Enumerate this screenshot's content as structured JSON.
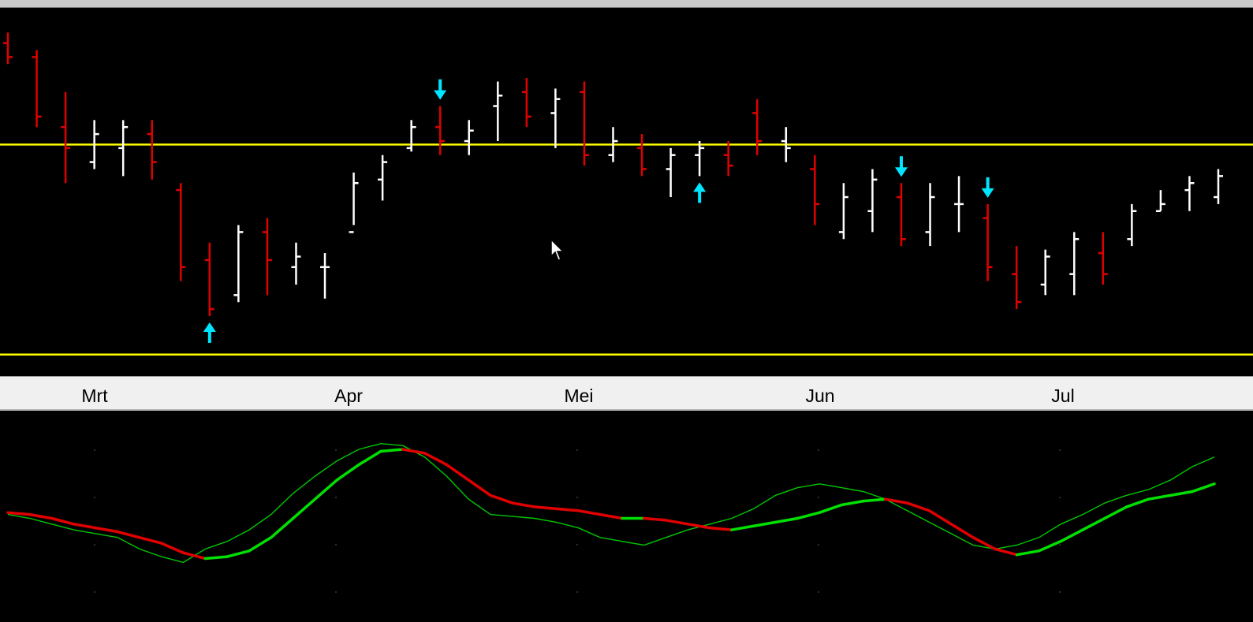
{
  "months": [
    "Mrt",
    "Apr",
    "Mei",
    "Jun",
    "Jul"
  ],
  "colors": {
    "up_bar": "#ffffff",
    "down_bar": "#e00000",
    "level_line": "#ffff00",
    "signal_arrow": "#00e5ff",
    "fast_line": "#00c800",
    "slow_up": "#00e000",
    "slow_down": "#e00000"
  },
  "chart_data": [
    {
      "type": "ohlc",
      "price_scale": [
        0,
        100
      ],
      "level_lines": [
        65,
        5
      ],
      "month_ticks": [
        {
          "label": "Mrt",
          "index": 4
        },
        {
          "label": "Apr",
          "index": 16
        },
        {
          "label": "Mei",
          "index": 27
        },
        {
          "label": "Jun",
          "index": 39
        },
        {
          "label": "Jul",
          "index": 51
        }
      ],
      "bars": [
        {
          "i": 0,
          "o": 94,
          "h": 97,
          "l": 88,
          "c": 90,
          "up": false
        },
        {
          "i": 1,
          "o": 90,
          "h": 92,
          "l": 70,
          "c": 73,
          "up": false
        },
        {
          "i": 2,
          "o": 70,
          "h": 80,
          "l": 54,
          "c": 64,
          "up": false
        },
        {
          "i": 3,
          "o": 60,
          "h": 72,
          "l": 58,
          "c": 68,
          "up": true
        },
        {
          "i": 4,
          "o": 64,
          "h": 72,
          "l": 56,
          "c": 70,
          "up": true
        },
        {
          "i": 5,
          "o": 68,
          "h": 72,
          "l": 55,
          "c": 60,
          "up": false
        },
        {
          "i": 6,
          "o": 52,
          "h": 54,
          "l": 26,
          "c": 30,
          "up": false
        },
        {
          "i": 7,
          "o": 32,
          "h": 37,
          "l": 16,
          "c": 18,
          "up": false
        },
        {
          "i": 8,
          "o": 22,
          "h": 42,
          "l": 20,
          "c": 40,
          "up": true
        },
        {
          "i": 9,
          "o": 40,
          "h": 44,
          "l": 22,
          "c": 32,
          "up": false
        },
        {
          "i": 10,
          "o": 30,
          "h": 37,
          "l": 25,
          "c": 33,
          "up": true
        },
        {
          "i": 11,
          "o": 30,
          "h": 34,
          "l": 21,
          "c": 30,
          "up": true
        },
        {
          "i": 12,
          "o": 40,
          "h": 57,
          "l": 42,
          "c": 54,
          "up": true
        },
        {
          "i": 13,
          "o": 55,
          "h": 62,
          "l": 49,
          "c": 60,
          "up": true
        },
        {
          "i": 14,
          "o": 64,
          "h": 72,
          "l": 63,
          "c": 70,
          "up": true
        },
        {
          "i": 15,
          "o": 70,
          "h": 76,
          "l": 62,
          "c": 66,
          "up": false
        },
        {
          "i": 16,
          "o": 66,
          "h": 72,
          "l": 62,
          "c": 69,
          "up": true
        },
        {
          "i": 17,
          "o": 76,
          "h": 83,
          "l": 66,
          "c": 79,
          "up": true
        },
        {
          "i": 18,
          "o": 80,
          "h": 84,
          "l": 70,
          "c": 73,
          "up": false
        },
        {
          "i": 19,
          "o": 74,
          "h": 81,
          "l": 64,
          "c": 78,
          "up": true
        },
        {
          "i": 20,
          "o": 80,
          "h": 83,
          "l": 59,
          "c": 62,
          "up": false
        },
        {
          "i": 21,
          "o": 62,
          "h": 70,
          "l": 60,
          "c": 66,
          "up": true
        },
        {
          "i": 22,
          "o": 64,
          "h": 68,
          "l": 56,
          "c": 58,
          "up": false
        },
        {
          "i": 23,
          "o": 58,
          "h": 64,
          "l": 50,
          "c": 62,
          "up": true
        },
        {
          "i": 24,
          "o": 62,
          "h": 66,
          "l": 56,
          "c": 64,
          "up": true
        },
        {
          "i": 25,
          "o": 62,
          "h": 66,
          "l": 56,
          "c": 59,
          "up": false
        },
        {
          "i": 26,
          "o": 74,
          "h": 78,
          "l": 62,
          "c": 66,
          "up": false
        },
        {
          "i": 27,
          "o": 66,
          "h": 70,
          "l": 60,
          "c": 64,
          "up": true
        },
        {
          "i": 28,
          "o": 58,
          "h": 62,
          "l": 42,
          "c": 48,
          "up": false
        },
        {
          "i": 29,
          "o": 40,
          "h": 54,
          "l": 38,
          "c": 50,
          "up": true
        },
        {
          "i": 30,
          "o": 46,
          "h": 58,
          "l": 40,
          "c": 55,
          "up": true
        },
        {
          "i": 31,
          "o": 50,
          "h": 54,
          "l": 36,
          "c": 38,
          "up": false
        },
        {
          "i": 32,
          "o": 40,
          "h": 54,
          "l": 36,
          "c": 50,
          "up": true
        },
        {
          "i": 33,
          "o": 48,
          "h": 56,
          "l": 40,
          "c": 48,
          "up": true
        },
        {
          "i": 34,
          "o": 44,
          "h": 48,
          "l": 26,
          "c": 30,
          "up": false
        },
        {
          "i": 35,
          "o": 28,
          "h": 36,
          "l": 18,
          "c": 20,
          "up": false
        },
        {
          "i": 36,
          "o": 25,
          "h": 35,
          "l": 22,
          "c": 33,
          "up": true
        },
        {
          "i": 37,
          "o": 28,
          "h": 40,
          "l": 22,
          "c": 38,
          "up": true
        },
        {
          "i": 38,
          "o": 34,
          "h": 40,
          "l": 25,
          "c": 28,
          "up": false
        },
        {
          "i": 39,
          "o": 38,
          "h": 48,
          "l": 36,
          "c": 46,
          "up": true
        },
        {
          "i": 40,
          "o": 46,
          "h": 52,
          "l": 46,
          "c": 48,
          "up": true
        },
        {
          "i": 41,
          "o": 52,
          "h": 56,
          "l": 46,
          "c": 54,
          "up": true
        },
        {
          "i": 42,
          "o": 50,
          "h": 58,
          "l": 48,
          "c": 56,
          "up": true
        }
      ]
    },
    {
      "type": "line",
      "series": [
        {
          "values": [
            52,
            50,
            47,
            44,
            42,
            40,
            34,
            30,
            27,
            34,
            38,
            44,
            52,
            63,
            72,
            80,
            86,
            89,
            88,
            82,
            72,
            60,
            52,
            51,
            50,
            48,
            45,
            40,
            38,
            36,
            40,
            44,
            47,
            50,
            55,
            62,
            66,
            68,
            66,
            64,
            60,
            54,
            48,
            42,
            36,
            34,
            36,
            40,
            47,
            52,
            58,
            62,
            65,
            70,
            77,
            82
          ]
        },
        {
          "values": [
            53,
            52,
            50,
            47,
            45,
            43,
            40,
            37,
            32,
            29,
            30,
            33,
            40,
            50,
            60,
            70,
            78,
            85,
            86,
            84,
            78,
            70,
            62,
            58,
            56,
            55,
            54,
            52,
            50,
            50,
            49,
            47,
            45,
            44,
            46,
            48,
            50,
            53,
            57,
            59,
            60,
            58,
            54,
            47,
            40,
            34,
            31,
            33,
            38,
            44,
            50,
            56,
            60,
            62,
            64,
            68
          ]
        }
      ]
    }
  ]
}
